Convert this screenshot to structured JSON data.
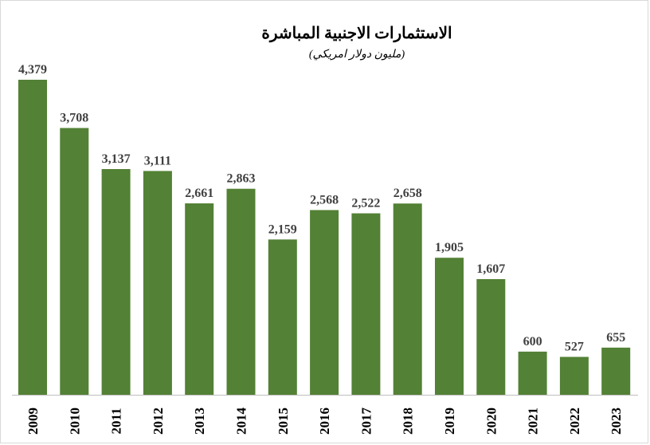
{
  "chart_data": {
    "type": "bar",
    "title": "الاستثمارات الاجنبية المباشرة",
    "subtitle": "(مليون دولار امريكي)",
    "xlabel": "",
    "ylabel": "",
    "categories": [
      "2009",
      "2010",
      "2011",
      "2012",
      "2013",
      "2014",
      "2015",
      "2016",
      "2017",
      "2018",
      "2019",
      "2020",
      "2021",
      "2022",
      "2023"
    ],
    "values": [
      4379,
      3708,
      3137,
      3111,
      2661,
      2863,
      2159,
      2568,
      2522,
      2658,
      1905,
      1607,
      600,
      527,
      655
    ],
    "value_labels": [
      "4,379",
      "3,708",
      "3,137",
      "3,111",
      "2,661",
      "2,863",
      "2,159",
      "2,568",
      "2,522",
      "2,658",
      "1,905",
      "1,607",
      "600",
      "527",
      "655"
    ],
    "ylim": [
      0,
      4379
    ],
    "grid": false,
    "legend": "none",
    "bar_color": "#538135",
    "label_color": "#404040"
  }
}
